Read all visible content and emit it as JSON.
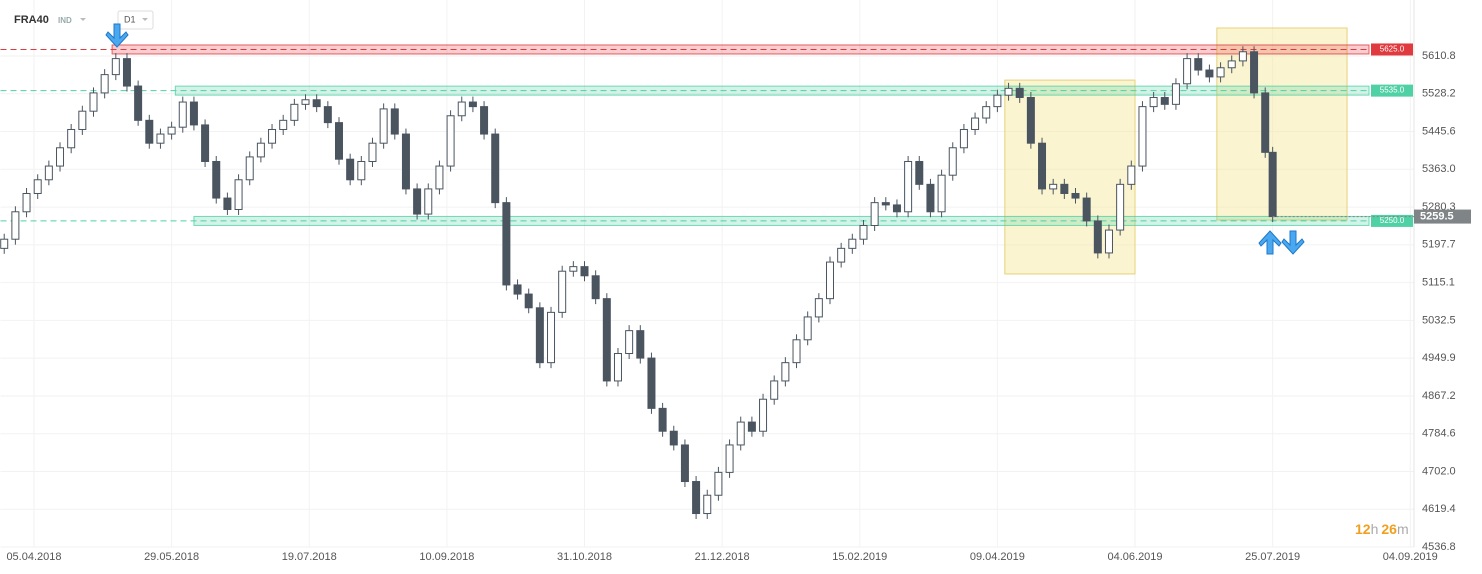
{
  "header": {
    "symbol": "FRA40",
    "market": "IND",
    "interval": "D1"
  },
  "timer": {
    "hours": "12",
    "hours_unit": "h",
    "minutes": "26",
    "minutes_unit": "m"
  },
  "chart_data": {
    "type": "candlestick",
    "up_color": "#ffffff",
    "down_color": "#4a5560",
    "outline_color": "#4a5560",
    "xlim": [
      -9,
      371
    ],
    "ylim": [
      4536.8,
      5733.2
    ],
    "xticks": [
      {
        "value": 0,
        "label": "05.04.2018"
      },
      {
        "value": 37,
        "label": "29.05.2018"
      },
      {
        "value": 74,
        "label": "19.07.2018"
      },
      {
        "value": 111,
        "label": "10.09.2018"
      },
      {
        "value": 148,
        "label": "31.10.2018"
      },
      {
        "value": 185,
        "label": "21.12.2018"
      },
      {
        "value": 222,
        "label": "15.02.2019"
      },
      {
        "value": 259,
        "label": "09.04.2019"
      },
      {
        "value": 296,
        "label": "04.06.2019"
      },
      {
        "value": 333,
        "label": "25.07.2019"
      },
      {
        "value": 370,
        "label": "04.09.2019"
      }
    ],
    "yticks": [
      5610.8,
      5528.2,
      5445.6,
      {
        "value": 5363.0,
        "label": "5363.0"
      },
      5280.3,
      5197.7,
      5115.1,
      5032.5,
      4949.9,
      4867.2,
      4784.6,
      {
        "value": 4702.0,
        "label": "4702.0"
      },
      4619.4,
      4536.8
    ],
    "grid": true,
    "levels": [
      {
        "value": 5625,
        "label": "5625.0",
        "color": "#e0393e",
        "start": 21
      },
      {
        "value": 5535,
        "label": "5535.0",
        "color": "#4fd1a5",
        "start": 38
      },
      {
        "value": 5250,
        "label": "5250.0",
        "color": "#4fd1a5",
        "start": 43
      }
    ],
    "highlight_boxes": [
      {
        "x": [
          261,
          296
        ],
        "y": [
          5134,
          5558
        ]
      },
      {
        "x": [
          318,
          353
        ],
        "y": [
          5252,
          5672
        ]
      }
    ],
    "last": {
      "value": 5259.5,
      "color": "#7f8487"
    },
    "x": [
      -8,
      -5,
      -2,
      1,
      4,
      7,
      10,
      13,
      16,
      19,
      22,
      25,
      28,
      31,
      34,
      37,
      40,
      43,
      46,
      49,
      52,
      55,
      58,
      61,
      64,
      67,
      70,
      73,
      76,
      79,
      82,
      85,
      88,
      91,
      94,
      97,
      100,
      103,
      106,
      109,
      112,
      115,
      118,
      121,
      124,
      127,
      130,
      133,
      136,
      139,
      142,
      145,
      148,
      151,
      154,
      157,
      160,
      163,
      166,
      169,
      172,
      175,
      178,
      181,
      184,
      187,
      190,
      193,
      196,
      199,
      202,
      205,
      208,
      211,
      214,
      217,
      220,
      223,
      226,
      229,
      232,
      235,
      238,
      241,
      244,
      247,
      250,
      253,
      256,
      259,
      262,
      265,
      268,
      271,
      274,
      277,
      280,
      283,
      286,
      289,
      292,
      295,
      298,
      301,
      304,
      307,
      310,
      313,
      316,
      319,
      322,
      325,
      328,
      331,
      333
    ],
    "open": [
      5190,
      5210,
      5270,
      5310,
      5340,
      5370,
      5410,
      5450,
      5490,
      5530,
      5570,
      5605,
      5545,
      5470,
      5420,
      5440,
      5455,
      5510,
      5460,
      5380,
      5300,
      5275,
      5340,
      5390,
      5420,
      5450,
      5470,
      5505,
      5515,
      5500,
      5465,
      5385,
      5340,
      5380,
      5420,
      5495,
      5440,
      5320,
      5265,
      5320,
      5370,
      5480,
      5510,
      5500,
      5440,
      5290,
      5110,
      5090,
      5060,
      4940,
      5050,
      5140,
      5150,
      5130,
      5080,
      4900,
      4960,
      5010,
      4950,
      4840,
      4790,
      4760,
      4680,
      4610,
      4650,
      4700,
      4760,
      4810,
      4790,
      4860,
      4900,
      4940,
      4990,
      5040,
      5080,
      5160,
      5190,
      5210,
      5240,
      5290,
      5285,
      5270,
      5380,
      5330,
      5270,
      5350,
      5410,
      5450,
      5475,
      5500,
      5525,
      5540,
      5520,
      5420,
      5320,
      5330,
      5310,
      5300,
      5250,
      5180,
      5230,
      5330,
      5370,
      5500,
      5520,
      5505,
      5550,
      5605,
      5580,
      5565,
      5585,
      5600,
      5620,
      5530,
      5400
    ],
    "high": [
      5222,
      5282,
      5322,
      5352,
      5382,
      5422,
      5462,
      5502,
      5542,
      5582,
      5617,
      5617,
      5557,
      5482,
      5452,
      5467,
      5522,
      5522,
      5472,
      5392,
      5312,
      5352,
      5402,
      5432,
      5462,
      5482,
      5517,
      5527,
      5527,
      5512,
      5477,
      5397,
      5392,
      5432,
      5507,
      5507,
      5452,
      5332,
      5332,
      5382,
      5492,
      5522,
      5522,
      5512,
      5452,
      5302,
      5122,
      5102,
      5072,
      5062,
      5152,
      5162,
      5162,
      5142,
      5092,
      4972,
      5022,
      5022,
      4962,
      4852,
      4802,
      4772,
      4692,
      4662,
      4712,
      4772,
      4822,
      4822,
      4872,
      4912,
      4952,
      5002,
      5052,
      5092,
      5172,
      5202,
      5222,
      5252,
      5302,
      5302,
      5297,
      5392,
      5392,
      5342,
      5362,
      5422,
      5462,
      5487,
      5512,
      5537,
      5552,
      5552,
      5532,
      5432,
      5342,
      5342,
      5322,
      5312,
      5262,
      5242,
      5342,
      5382,
      5512,
      5532,
      5532,
      5562,
      5617,
      5617,
      5592,
      5597,
      5612,
      5632,
      5632,
      5542,
      5412
    ],
    "low": [
      5178,
      5198,
      5258,
      5298,
      5328,
      5358,
      5398,
      5438,
      5478,
      5518,
      5558,
      5533,
      5458,
      5408,
      5408,
      5428,
      5443,
      5448,
      5368,
      5288,
      5263,
      5263,
      5328,
      5378,
      5408,
      5438,
      5458,
      5493,
      5488,
      5453,
      5373,
      5328,
      5328,
      5368,
      5408,
      5428,
      5308,
      5253,
      5253,
      5308,
      5358,
      5468,
      5488,
      5428,
      5278,
      5098,
      5078,
      5048,
      4928,
      4928,
      5038,
      5128,
      5118,
      5068,
      4888,
      4888,
      4948,
      4938,
      4828,
      4778,
      4748,
      4668,
      4598,
      4598,
      4638,
      4688,
      4748,
      4778,
      4778,
      4848,
      4888,
      4928,
      4978,
      5028,
      5068,
      5148,
      5178,
      5198,
      5228,
      5273,
      5258,
      5258,
      5318,
      5258,
      5258,
      5338,
      5398,
      5438,
      5463,
      5488,
      5513,
      5508,
      5408,
      5308,
      5308,
      5298,
      5288,
      5238,
      5168,
      5168,
      5218,
      5318,
      5358,
      5488,
      5493,
      5493,
      5538,
      5568,
      5553,
      5553,
      5573,
      5588,
      5518,
      5388,
      5247.5
    ],
    "close": [
      5210,
      5270,
      5310,
      5340,
      5370,
      5410,
      5450,
      5490,
      5530,
      5570,
      5605,
      5545,
      5470,
      5420,
      5440,
      5455,
      5510,
      5460,
      5380,
      5300,
      5275,
      5340,
      5390,
      5420,
      5450,
      5470,
      5505,
      5515,
      5500,
      5465,
      5385,
      5340,
      5380,
      5420,
      5495,
      5440,
      5320,
      5265,
      5320,
      5370,
      5480,
      5510,
      5500,
      5440,
      5290,
      5110,
      5090,
      5060,
      4940,
      5050,
      5140,
      5150,
      5130,
      5080,
      4900,
      4960,
      5010,
      4950,
      4840,
      4790,
      4760,
      4680,
      4610,
      4650,
      4700,
      4760,
      4810,
      4790,
      4860,
      4900,
      4940,
      4990,
      5040,
      5080,
      5160,
      5190,
      5210,
      5240,
      5290,
      5285,
      5270,
      5380,
      5330,
      5270,
      5350,
      5410,
      5450,
      5475,
      5500,
      5525,
      5540,
      5520,
      5420,
      5320,
      5330,
      5310,
      5300,
      5250,
      5180,
      5230,
      5330,
      5370,
      5500,
      5520,
      5505,
      5550,
      5605,
      5580,
      5565,
      5585,
      5600,
      5620,
      5530,
      5400,
      5259.5
    ]
  }
}
